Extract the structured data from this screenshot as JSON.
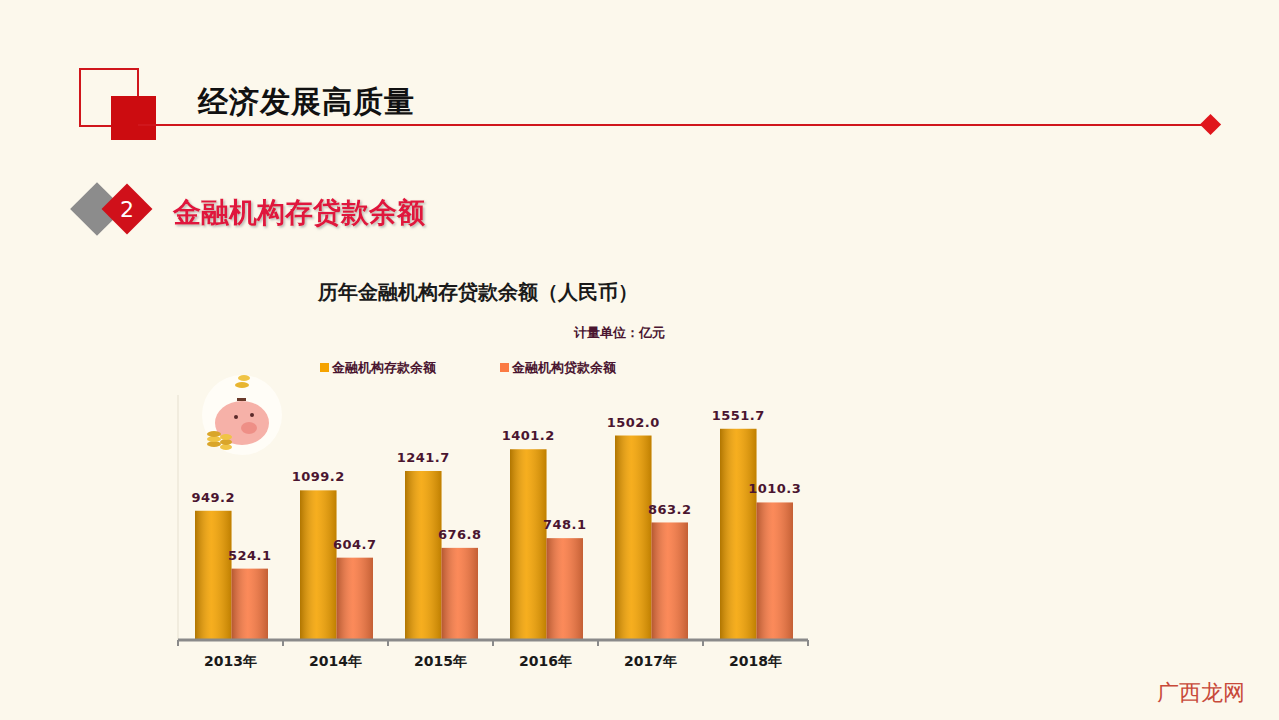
{
  "page": {
    "title": "经济发展高质量",
    "section_number": "2",
    "section_title": "金融机构存贷款余额",
    "watermark": "广西龙网"
  },
  "chart_data": {
    "type": "bar",
    "title": "历年金融机构存贷款余额（人民币）",
    "subtitle": "计量单位：亿元",
    "categories": [
      "2013年",
      "2014年",
      "2015年",
      "2016年",
      "2017年",
      "2018年"
    ],
    "series": [
      {
        "name": "金融机构存款余额",
        "color": "#f5a300",
        "values": [
          949.2,
          1099.2,
          1241.7,
          1401.2,
          1502.0,
          1551.7
        ],
        "value_labels": [
          "949.2",
          "1099.2",
          "1241.7",
          "1401.2",
          "1502.0",
          "1551.7"
        ]
      },
      {
        "name": "金融机构贷款余额",
        "color": "#fb7a43",
        "values": [
          524.1,
          604.7,
          676.8,
          748.1,
          863.2,
          1010.3
        ]
      }
    ],
    "ylim": [
      0,
      1800
    ],
    "yticks": [],
    "tick_labels": "x",
    "data_labels": true,
    "legend": "top",
    "grid": false
  }
}
